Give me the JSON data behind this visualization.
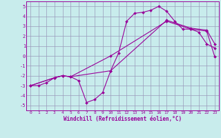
{
  "xlabel": "Windchill (Refroidissement éolien,°C)",
  "bg_color": "#c8ecec",
  "line_color": "#990099",
  "grid_color": "#9999bb",
  "xlim": [
    -0.5,
    23.5
  ],
  "ylim": [
    -5.5,
    5.5
  ],
  "yticks": [
    -5,
    -4,
    -3,
    -2,
    -1,
    0,
    1,
    2,
    3,
    4,
    5
  ],
  "xticks": [
    0,
    1,
    2,
    3,
    4,
    5,
    6,
    7,
    8,
    9,
    10,
    11,
    12,
    13,
    14,
    15,
    16,
    17,
    18,
    19,
    20,
    21,
    22,
    23
  ],
  "line1_x": [
    0,
    1,
    2,
    3,
    4,
    5,
    6,
    7,
    8,
    9,
    10,
    11,
    12,
    13,
    14,
    15,
    16,
    17,
    18,
    19,
    20,
    21,
    22,
    23
  ],
  "line1_y": [
    -3,
    -3,
    -2.7,
    -2.2,
    -2.0,
    -2.1,
    -2.5,
    -4.7,
    -4.4,
    -3.7,
    -1.5,
    0.3,
    3.5,
    4.3,
    4.4,
    4.6,
    5.0,
    4.5,
    3.5,
    2.7,
    2.7,
    2.4,
    1.2,
    0.8
  ],
  "line2_x": [
    0,
    3,
    4,
    5,
    10,
    17,
    20,
    22,
    23
  ],
  "line2_y": [
    -3,
    -2.2,
    -2.0,
    -2.1,
    -1.5,
    3.6,
    2.8,
    2.6,
    1.2
  ],
  "line3_x": [
    0,
    3,
    4,
    5,
    10,
    17,
    20,
    22,
    23
  ],
  "line3_y": [
    -3,
    -2.2,
    -2.0,
    -2.1,
    0.0,
    3.5,
    2.7,
    2.5,
    -0.1
  ]
}
